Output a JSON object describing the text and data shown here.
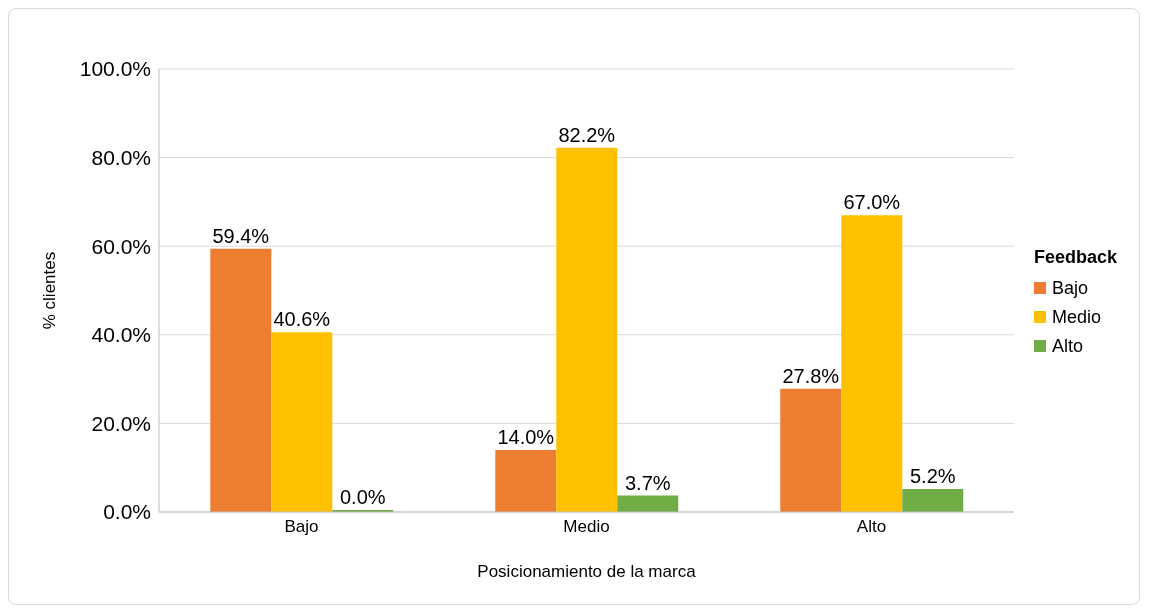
{
  "chart_data": {
    "type": "bar",
    "categories": [
      "Bajo",
      "Medio",
      "Alto"
    ],
    "series": [
      {
        "name": "Bajo",
        "color": "#ed7d31",
        "values": [
          59.4,
          14.0,
          27.8
        ],
        "value_labels": [
          "59.4%",
          "14.0%",
          "27.8%"
        ]
      },
      {
        "name": "Medio",
        "color": "#ffc000",
        "values": [
          40.6,
          82.2,
          67.0
        ],
        "value_labels": [
          "40.6%",
          "82.2%",
          "67.0%"
        ]
      },
      {
        "name": "Alto",
        "color": "#70ad47",
        "values": [
          0.0,
          3.7,
          5.2
        ],
        "value_labels": [
          "0.0%",
          "3.7%",
          "5.2%"
        ]
      }
    ],
    "ylim": [
      0,
      100
    ],
    "yticks": [
      {
        "value": 0,
        "label": "0.0%"
      },
      {
        "value": 20,
        "label": "20.0%"
      },
      {
        "value": 40,
        "label": "40.0%"
      },
      {
        "value": 60,
        "label": "60.0%"
      },
      {
        "value": 80,
        "label": "80.0%"
      },
      {
        "value": 100,
        "label": "100.0%"
      }
    ],
    "ylabel": "% clientes",
    "xlabel": "Posicionamiento de la marca",
    "legend_title": "Feedback",
    "legend": "right",
    "grid": "y"
  }
}
